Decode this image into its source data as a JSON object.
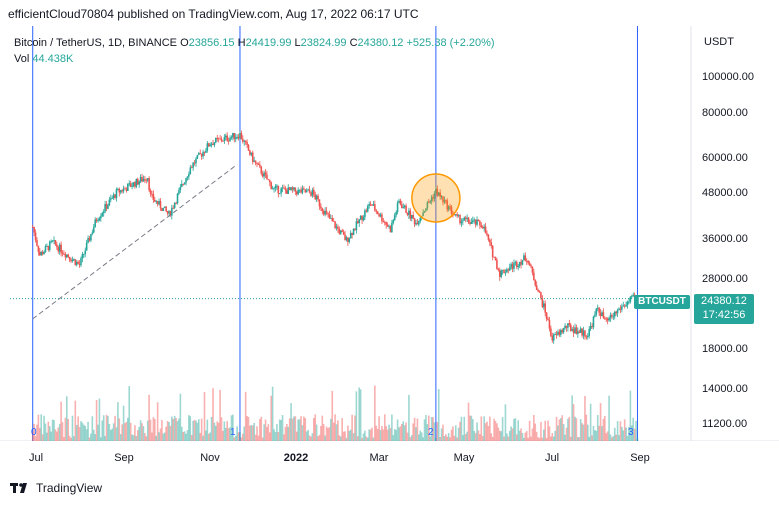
{
  "header": {
    "text": "efficientCloud70804 published on TradingView.com, Aug 17, 2022 06:17 UTC"
  },
  "legend": {
    "symbol": "Bitcoin / TetherUS, 1D, BINANCE",
    "o_label": "O",
    "o": "23856.15",
    "h_label": "H",
    "h": "24419.99",
    "l_label": "L",
    "l": "23824.99",
    "c_label": "C",
    "c": "24380.12",
    "change": "+525.38 (+2.20%)",
    "vol_label": "Vol",
    "vol": "44.438K"
  },
  "currency": "USDT",
  "badge": {
    "symbol": "BTCUSDT",
    "price": "24380.12",
    "countdown": "17:42:56"
  },
  "markers": [
    "0",
    "1",
    "2",
    "3"
  ],
  "footer": {
    "brand": "TradingView",
    "logo_icon": "tradingview-logo-icon"
  },
  "colors": {
    "up": "#26a69a",
    "down": "#ef5350",
    "vline": "#2962ff",
    "highlight": "#ff9800"
  },
  "chart_data": {
    "type": "candlestick",
    "scale": "log",
    "ylim": [
      10500,
      125000
    ],
    "yticks": [
      "100000.00",
      "80000.00",
      "60000.00",
      "48000.00",
      "36000.00",
      "28000.00",
      "18000.00",
      "14000.00",
      "11200.00"
    ],
    "xticks": [
      {
        "label": "Jul",
        "bold": false
      },
      {
        "label": "Sep",
        "bold": false
      },
      {
        "label": "Nov",
        "bold": false
      },
      {
        "label": "2022",
        "bold": true
      },
      {
        "label": "Mar",
        "bold": false
      },
      {
        "label": "May",
        "bold": false
      },
      {
        "label": "Jul",
        "bold": false
      },
      {
        "label": "Sep",
        "bold": false
      }
    ],
    "price_anchors": [
      [
        "2021-06-17",
        38000
      ],
      [
        "2021-06-22",
        32000
      ],
      [
        "2021-07-01",
        34500
      ],
      [
        "2021-07-20",
        30000
      ],
      [
        "2021-08-01",
        40000
      ],
      [
        "2021-08-15",
        47000
      ],
      [
        "2021-09-06",
        52000
      ],
      [
        "2021-09-08",
        46000
      ],
      [
        "2021-09-21",
        41000
      ],
      [
        "2021-10-06",
        55000
      ],
      [
        "2021-10-20",
        64000
      ],
      [
        "2021-11-10",
        67500
      ],
      [
        "2021-11-20",
        57000
      ],
      [
        "2021-12-04",
        48000
      ],
      [
        "2021-12-31",
        47000
      ],
      [
        "2022-01-10",
        41000
      ],
      [
        "2022-01-24",
        35000
      ],
      [
        "2022-02-10",
        44000
      ],
      [
        "2022-02-24",
        37500
      ],
      [
        "2022-03-02",
        44500
      ],
      [
        "2022-03-14",
        39000
      ],
      [
        "2022-03-28",
        47500
      ],
      [
        "2022-04-12",
        40000
      ],
      [
        "2022-04-30",
        38500
      ],
      [
        "2022-05-12",
        28500
      ],
      [
        "2022-05-31",
        31500
      ],
      [
        "2022-06-13",
        22500
      ],
      [
        "2022-06-18",
        19000
      ],
      [
        "2022-06-28",
        20500
      ],
      [
        "2022-07-13",
        19500
      ],
      [
        "2022-07-20",
        23000
      ],
      [
        "2022-07-26",
        21000
      ],
      [
        "2022-08-05",
        23000
      ],
      [
        "2022-08-14",
        24400
      ],
      [
        "2022-08-17",
        24380
      ]
    ],
    "highlight_circle": {
      "date": "2022-03-28",
      "price": 45500
    },
    "trendline": [
      [
        "2021-06-17",
        21500
      ],
      [
        "2021-11-08",
        56000
      ]
    ],
    "vertical_lines": [
      "2021-06-17",
      "2021-11-10",
      "2022-03-28",
      "2022-08-17"
    ],
    "current_price": 24380.12
  }
}
